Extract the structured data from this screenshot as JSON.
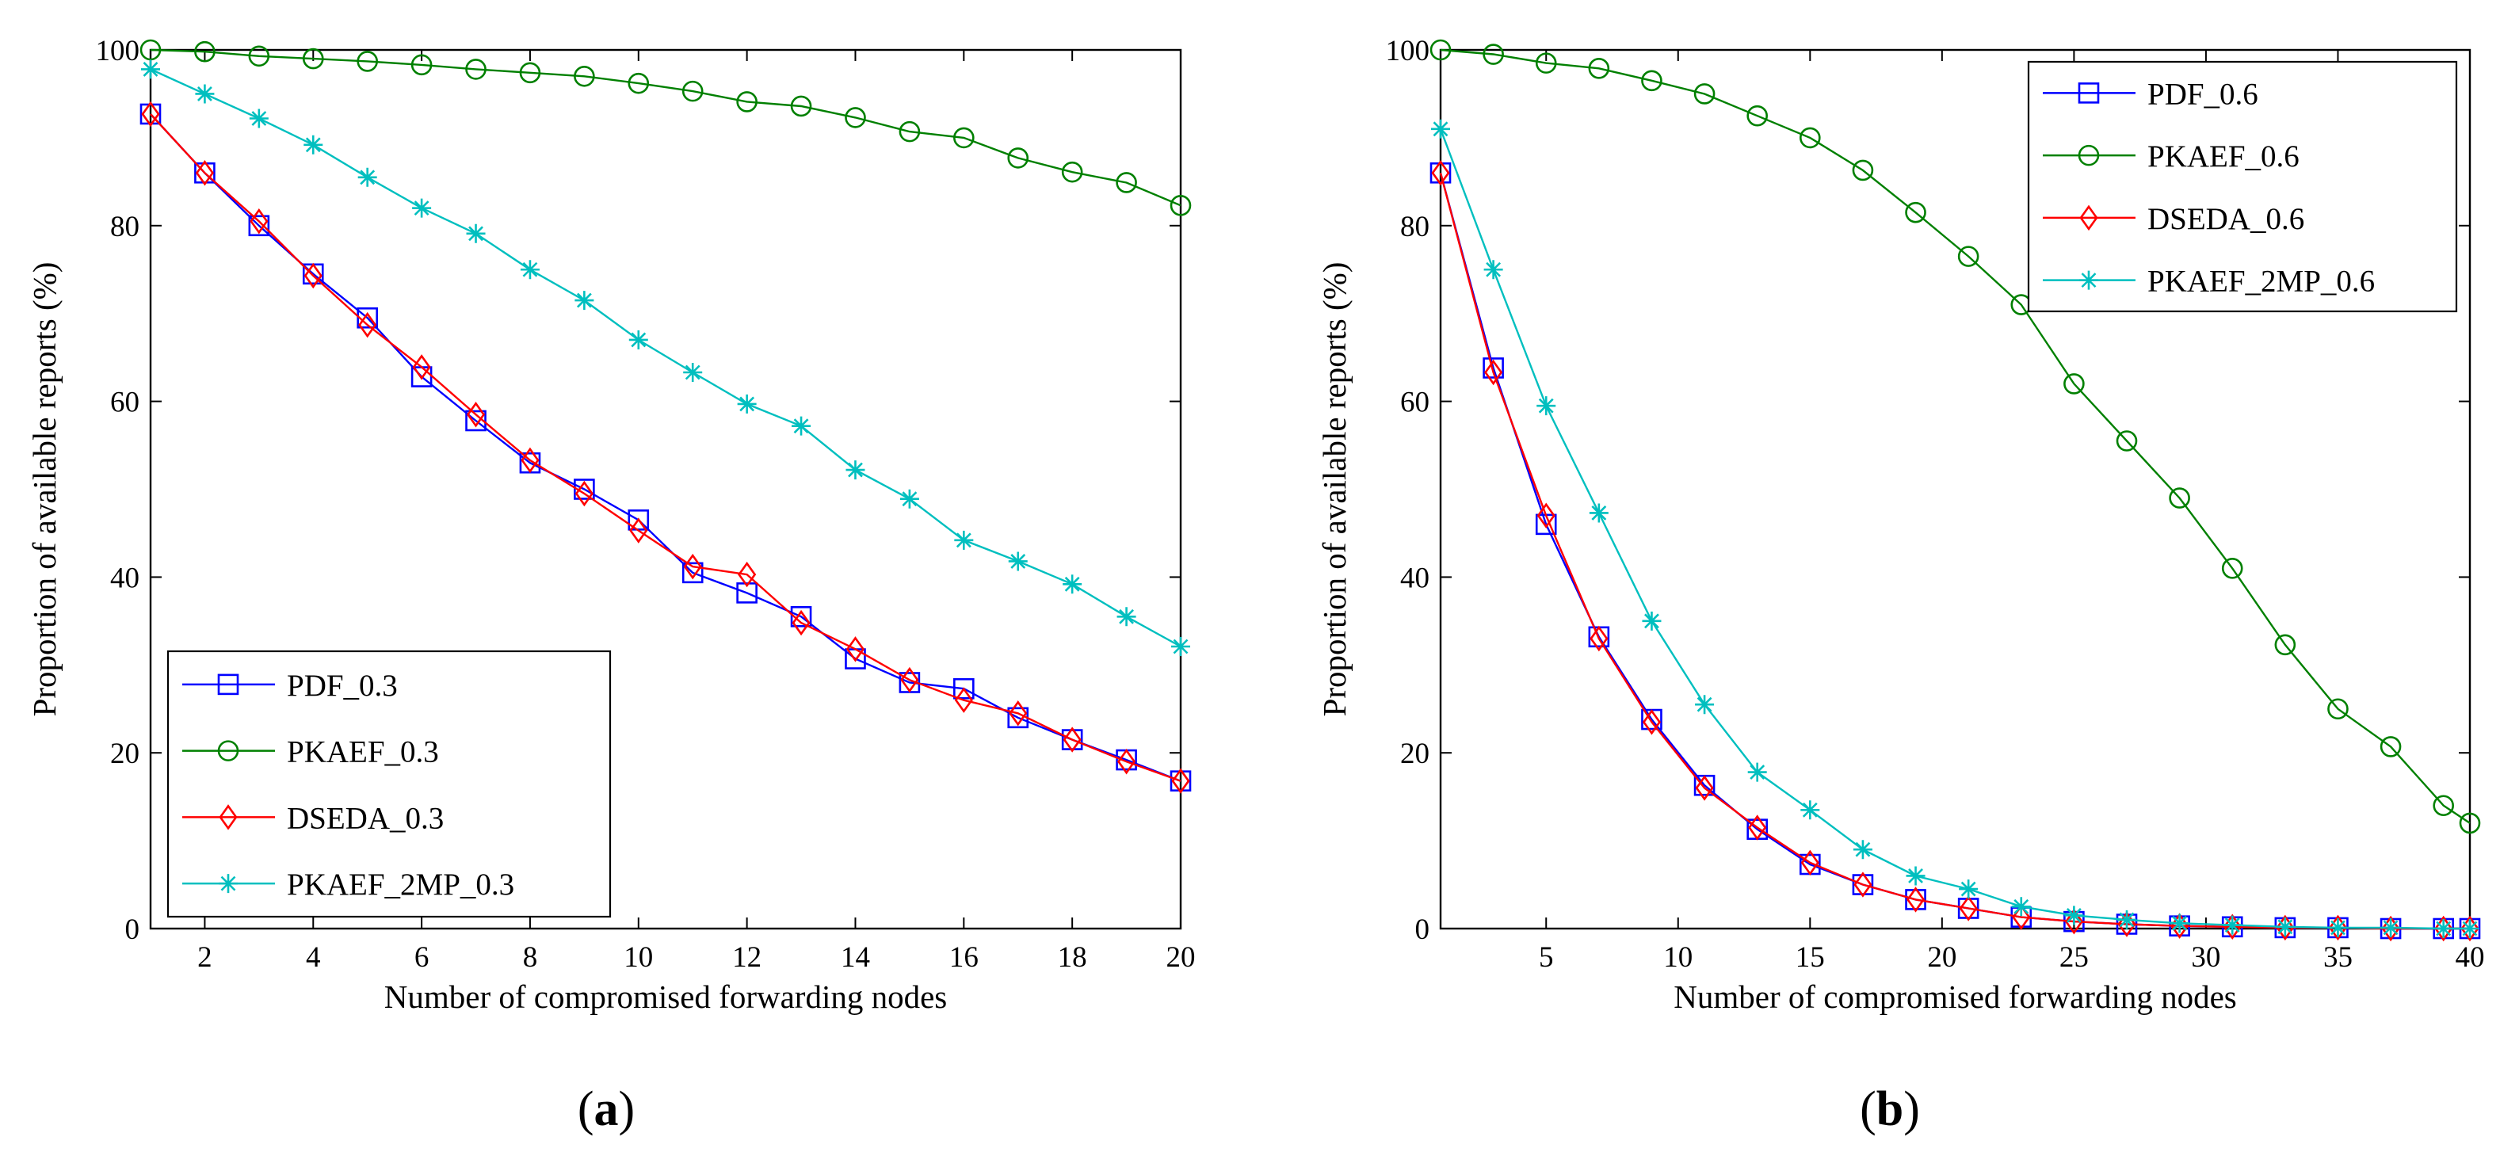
{
  "chart_data": [
    {
      "type": "line",
      "caption": "a",
      "xlabel": "Number of compromised forwarding nodes",
      "ylabel": "Proportion of available reports (%)",
      "xlim": [
        1,
        20
      ],
      "ylim": [
        0,
        100
      ],
      "xticks": [
        "2",
        "4",
        "6",
        "8",
        "10",
        "12",
        "14",
        "16",
        "18",
        "20"
      ],
      "yticks": [
        "0",
        "20",
        "40",
        "60",
        "80",
        "100"
      ],
      "grid": false,
      "legend_position": "bottom-left",
      "x": [
        1,
        2,
        3,
        4,
        5,
        6,
        7,
        8,
        9,
        10,
        11,
        12,
        13,
        14,
        15,
        16,
        17,
        18,
        19,
        20
      ],
      "series": [
        {
          "name": "PDF_0.3",
          "color": "#0000ff",
          "marker": "square",
          "values": [
            92.7,
            86.0,
            80.0,
            74.5,
            69.5,
            62.8,
            57.8,
            53.0,
            50.0,
            46.5,
            40.5,
            38.2,
            35.5,
            30.7,
            28.0,
            27.3,
            24.0,
            21.5,
            19.2,
            16.8
          ]
        },
        {
          "name": "PKAEF_0.3",
          "color": "#008000",
          "marker": "circle",
          "values": [
            100.0,
            99.8,
            99.3,
            99.0,
            98.7,
            98.3,
            97.8,
            97.4,
            97.0,
            96.2,
            95.3,
            94.1,
            93.6,
            92.3,
            90.7,
            90.0,
            87.7,
            86.1,
            84.9,
            82.3
          ]
        },
        {
          "name": "DSEDA_0.3",
          "color": "#ff0000",
          "marker": "diamond",
          "values": [
            92.7,
            86.0,
            80.5,
            74.3,
            68.7,
            63.9,
            58.5,
            53.3,
            49.5,
            45.3,
            41.2,
            40.3,
            34.8,
            31.8,
            28.3,
            26.0,
            24.5,
            21.5,
            19.0,
            16.8
          ]
        },
        {
          "name": "PKAEF_2MP_0.3",
          "color": "#00bfbf",
          "marker": "star",
          "values": [
            97.8,
            95.0,
            92.2,
            89.2,
            85.5,
            82.0,
            79.1,
            75.0,
            71.5,
            67.0,
            63.3,
            59.7,
            57.2,
            52.2,
            48.9,
            44.2,
            41.8,
            39.2,
            35.5,
            32.1
          ]
        }
      ]
    },
    {
      "type": "line",
      "caption": "b",
      "xlabel": "Number of compromised forwarding nodes",
      "ylabel": "Proportion of available reports (%)",
      "xlim": [
        1,
        40
      ],
      "ylim": [
        0,
        100
      ],
      "xticks": [
        "5",
        "10",
        "15",
        "20",
        "25",
        "30",
        "35",
        "40"
      ],
      "yticks": [
        "0",
        "20",
        "40",
        "60",
        "80",
        "100"
      ],
      "grid": false,
      "legend_position": "top-right",
      "x": [
        1,
        3,
        5,
        7,
        9,
        11,
        13,
        15,
        17,
        19,
        21,
        23,
        25,
        27,
        29,
        31,
        33,
        35,
        37,
        39,
        40
      ],
      "series": [
        {
          "name": "PDF_0.6",
          "color": "#0000ff",
          "marker": "square",
          "values": [
            86.0,
            63.8,
            46.0,
            33.2,
            23.8,
            16.3,
            11.3,
            7.3,
            5.0,
            3.3,
            2.3,
            1.3,
            0.8,
            0.5,
            0.3,
            0.2,
            0.1,
            0.1,
            0.0,
            0.0,
            0.0
          ]
        },
        {
          "name": "PKAEF_0.6",
          "color": "#008000",
          "marker": "circle",
          "values": [
            100.0,
            99.5,
            98.5,
            97.9,
            96.5,
            95.0,
            92.5,
            90.0,
            86.3,
            81.5,
            76.5,
            71.0,
            62.0,
            55.5,
            49.0,
            41.0,
            32.3,
            25.0,
            20.7,
            14.0,
            12.0
          ]
        },
        {
          "name": "DSEDA_0.6",
          "color": "#ff0000",
          "marker": "diamond",
          "values": [
            86.0,
            63.3,
            47.0,
            33.0,
            23.5,
            16.0,
            11.5,
            7.5,
            5.0,
            3.3,
            2.3,
            1.3,
            0.8,
            0.5,
            0.3,
            0.2,
            0.1,
            0.1,
            0.0,
            0.0,
            0.0
          ]
        },
        {
          "name": "PKAEF_2MP_0.6",
          "color": "#00bfbf",
          "marker": "star",
          "values": [
            91.0,
            75.0,
            59.5,
            47.3,
            35.0,
            25.5,
            17.8,
            13.5,
            9.0,
            6.0,
            4.5,
            2.5,
            1.5,
            1.0,
            0.6,
            0.4,
            0.2,
            0.1,
            0.1,
            0.0,
            0.0
          ]
        }
      ]
    }
  ]
}
